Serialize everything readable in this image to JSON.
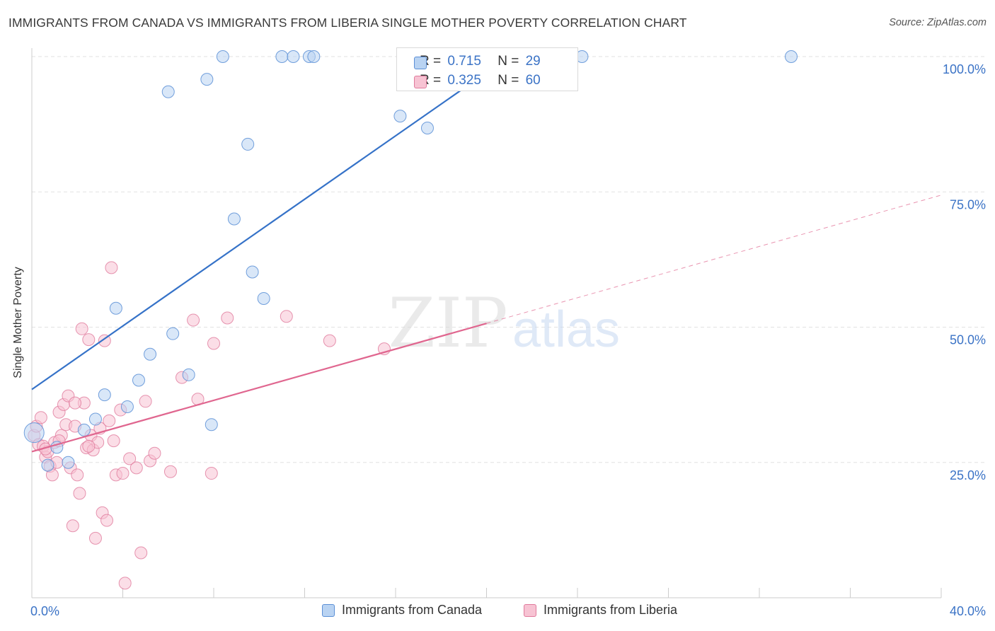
{
  "title": "IMMIGRANTS FROM CANADA VS IMMIGRANTS FROM LIBERIA SINGLE MOTHER POVERTY CORRELATION CHART",
  "source": "Source: ZipAtlas.com",
  "watermark": {
    "zip": "ZIP",
    "atlas": "atlas"
  },
  "stats": {
    "canada": {
      "r_label": "R =",
      "r_value": "0.715",
      "n_label": "N =",
      "n_value": "29"
    },
    "liberia": {
      "r_label": "R =",
      "r_value": "0.325",
      "n_label": "N =",
      "n_value": "60"
    }
  },
  "colors": {
    "canada_fill": "#b9d3f2",
    "canada_stroke": "#5b8fd6",
    "canada_line": "#3572c8",
    "liberia_fill": "#f7c3d3",
    "liberia_stroke": "#e07a9c",
    "liberia_line": "#e0668f",
    "axis_text": "#3b73c6",
    "grid": "#e2e2e2"
  },
  "chart_data": {
    "type": "scatter",
    "title": "IMMIGRANTS FROM CANADA VS IMMIGRANTS FROM LIBERIA SINGLE MOTHER POVERTY CORRELATION CHART",
    "xlabel": "",
    "ylabel": "Single Mother Poverty",
    "xlim": [
      0,
      40
    ],
    "ylim": [
      0,
      100
    ],
    "x_tick_labels": [
      "0.0%",
      "40.0%"
    ],
    "y_ticks": [
      25,
      50,
      75,
      100
    ],
    "y_tick_labels": [
      "25.0%",
      "50.0%",
      "75.0%",
      "100.0%"
    ],
    "grid": true,
    "legend_position": "bottom",
    "series": [
      {
        "name": "Immigrants from Canada",
        "r": 0.715,
        "n": 29,
        "points": [
          [
            0.1,
            30.5
          ],
          [
            0.7,
            24.5
          ],
          [
            1.1,
            27.8
          ],
          [
            1.6,
            25.0
          ],
          [
            2.3,
            31.0
          ],
          [
            2.8,
            33.0
          ],
          [
            3.2,
            37.5
          ],
          [
            3.7,
            53.5
          ],
          [
            4.2,
            35.3
          ],
          [
            4.7,
            40.2
          ],
          [
            5.2,
            45.0
          ],
          [
            6.0,
            93.5
          ],
          [
            6.2,
            48.8
          ],
          [
            6.9,
            41.2
          ],
          [
            7.7,
            95.8
          ],
          [
            7.9,
            32.0
          ],
          [
            8.4,
            100.0
          ],
          [
            8.9,
            70.0
          ],
          [
            9.5,
            83.8
          ],
          [
            9.7,
            60.2
          ],
          [
            10.2,
            55.3
          ],
          [
            11.0,
            100.0
          ],
          [
            11.5,
            100.0
          ],
          [
            12.2,
            100.0
          ],
          [
            12.4,
            100.0
          ],
          [
            16.2,
            89.0
          ],
          [
            17.4,
            86.8
          ],
          [
            24.2,
            100.0
          ],
          [
            33.4,
            100.0
          ]
        ],
        "trend": {
          "x": [
            0,
            21.0
          ],
          "y": [
            38.5,
            100.0
          ]
        }
      },
      {
        "name": "Immigrants from Liberia",
        "r": 0.325,
        "n": 60,
        "points": [
          [
            0.1,
            30.0
          ],
          [
            0.2,
            31.7
          ],
          [
            0.3,
            28.3
          ],
          [
            0.4,
            33.3
          ],
          [
            0.5,
            28.0
          ],
          [
            0.6,
            26.0
          ],
          [
            0.7,
            27.0
          ],
          [
            0.8,
            24.3
          ],
          [
            0.9,
            22.7
          ],
          [
            1.0,
            28.7
          ],
          [
            1.1,
            25.0
          ],
          [
            1.2,
            34.3
          ],
          [
            1.3,
            30.0
          ],
          [
            1.4,
            35.7
          ],
          [
            1.5,
            32.0
          ],
          [
            1.6,
            37.3
          ],
          [
            1.7,
            24.0
          ],
          [
            1.8,
            13.3
          ],
          [
            1.9,
            31.7
          ],
          [
            2.0,
            22.7
          ],
          [
            2.1,
            19.3
          ],
          [
            2.2,
            49.7
          ],
          [
            2.3,
            36.0
          ],
          [
            2.4,
            27.7
          ],
          [
            2.5,
            47.7
          ],
          [
            2.6,
            30.0
          ],
          [
            2.7,
            27.3
          ],
          [
            2.8,
            11.0
          ],
          [
            2.9,
            28.7
          ],
          [
            3.0,
            31.3
          ],
          [
            3.1,
            15.7
          ],
          [
            3.2,
            47.5
          ],
          [
            3.3,
            14.3
          ],
          [
            3.4,
            32.7
          ],
          [
            3.5,
            61.0
          ],
          [
            3.7,
            22.7
          ],
          [
            3.9,
            34.7
          ],
          [
            4.1,
            2.7
          ],
          [
            4.3,
            25.7
          ],
          [
            4.6,
            24.0
          ],
          [
            4.8,
            8.3
          ],
          [
            5.0,
            36.3
          ],
          [
            5.2,
            25.3
          ],
          [
            5.4,
            26.7
          ],
          [
            6.1,
            23.3
          ],
          [
            6.6,
            40.7
          ],
          [
            7.1,
            51.3
          ],
          [
            7.3,
            36.7
          ],
          [
            7.9,
            23.0
          ],
          [
            8.0,
            47.0
          ],
          [
            8.6,
            51.7
          ],
          [
            11.2,
            52.0
          ],
          [
            13.1,
            47.5
          ],
          [
            15.5,
            46.0
          ],
          [
            2.5,
            28.0
          ],
          [
            1.9,
            36.0
          ],
          [
            0.6,
            27.5
          ],
          [
            1.2,
            29.0
          ],
          [
            3.6,
            29.0
          ],
          [
            4.0,
            23.0
          ]
        ],
        "trend": {
          "x": [
            0,
            20.0
          ],
          "y": [
            27.0,
            50.7
          ]
        },
        "trend_extension": {
          "x": [
            20.0,
            40.0
          ],
          "y": [
            50.7,
            74.4
          ]
        }
      }
    ]
  },
  "legend": {
    "canada": "Immigrants from Canada",
    "liberia": "Immigrants from Liberia"
  }
}
